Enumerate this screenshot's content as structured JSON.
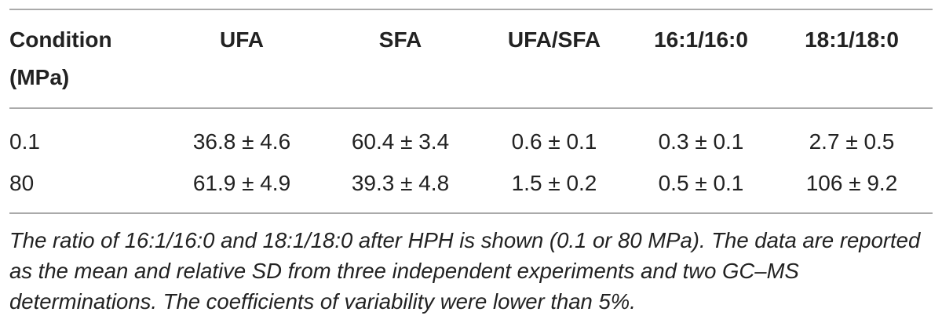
{
  "table": {
    "header": [
      "Condition (MPa)",
      "UFA",
      "SFA",
      "UFA/SFA",
      "16:1/16:0",
      "18:1/18:0"
    ],
    "rows": [
      [
        "0.1",
        "36.8 ± 4.6",
        "60.4 ± 3.4",
        "0.6 ± 0.1",
        "0.3 ± 0.1",
        "2.7 ± 0.5"
      ],
      [
        "80",
        "61.9 ± 4.9",
        "39.3 ± 4.8",
        "1.5 ± 0.2",
        "0.5 ± 0.1",
        "106 ± 9.2"
      ]
    ],
    "caption": "The ratio of 16:1/16:0 and 18:1/18:0 after HPH is shown (0.1 or 80 MPa). The data are reported as the mean and relative SD from three independent experiments and two GC–MS determinations. The coefficients of variability were lower than 5%."
  }
}
